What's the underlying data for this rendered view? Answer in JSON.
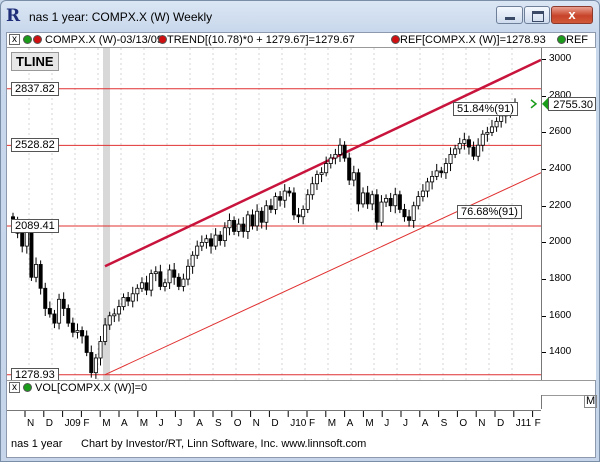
{
  "window": {
    "title": "nas 1 year: COMPX.X (W) Weekly",
    "app_icon": "R",
    "close_label": "x"
  },
  "legend": {
    "symbol_item": "COMPX.X (W)-03/13/09",
    "trend_item": "TREND[(10.78)*0 + 1279.67]=1279.67",
    "ref_item": "REF[COMPX.X (W)]=1278.93",
    "ref_item_short": "REF",
    "close_mark": "x",
    "dot_colors": [
      "#1a9b1a",
      "#d01010",
      "#d01010",
      "#d01010"
    ]
  },
  "plot": {
    "study_label": "TLINE",
    "ref_labels": [
      "2837.82",
      "2528.82",
      "2089.41",
      "1278.93"
    ],
    "channel_labels": [
      "51.84%(91)",
      "76.68%(91)"
    ],
    "last_price": "2755.30",
    "last_price_color": "#1a9b1a"
  },
  "volume": {
    "label": "VOL[COMPX.X (W)]=0",
    "close_mark": "x",
    "m_box": "M"
  },
  "x_axis": {
    "labels": [
      "N",
      "D",
      "J09",
      "F",
      "M",
      "A",
      "M",
      "J",
      "J",
      "A",
      "S",
      "O",
      "N",
      "D",
      "J10",
      "F",
      "M",
      "A",
      "M",
      "J",
      "J",
      "A",
      "S",
      "O",
      "N",
      "D",
      "J11",
      "F"
    ]
  },
  "footer": {
    "left": "nas 1 year",
    "right": "Chart by Investor/RT, Linn Software, Inc. www.linnsoft.com"
  },
  "chart_data": {
    "type": "candlestick",
    "symbol": "COMPX.X (W)",
    "interval": "Weekly",
    "y_ticks": [
      "3000",
      "2800",
      "2600",
      "2400",
      "2200",
      "2000",
      "1800",
      "1600",
      "1400"
    ],
    "ylim": [
      1250,
      3060
    ],
    "reference_lines": [
      2837.82,
      2528.82,
      2089.41,
      1278.93
    ],
    "trend_channel": {
      "upper": {
        "from": [
          "2009-03",
          1870
        ],
        "to": [
          "2011-02",
          2995
        ]
      },
      "lower": {
        "from": [
          "2009-03",
          1279
        ],
        "to": [
          "2011-02",
          2380
        ]
      },
      "labels": [
        "51.84%(91)",
        "76.68%(91)"
      ]
    },
    "weekly_close": [
      2110,
      2050,
      1980,
      2090,
      1810,
      1880,
      1750,
      1640,
      1610,
      1560,
      1690,
      1640,
      1560,
      1510,
      1520,
      1490,
      1400,
      1290,
      1370,
      1460,
      1550,
      1600,
      1610,
      1650,
      1700,
      1680,
      1720,
      1750,
      1780,
      1740,
      1830,
      1840,
      1760,
      1780,
      1850,
      1810,
      1760,
      1800,
      1870,
      1930,
      1980,
      2000,
      2020,
      1980,
      2040,
      2010,
      2080,
      2120,
      2060,
      2100,
      2060,
      2150,
      2090,
      2170,
      2110,
      2200,
      2180,
      2250,
      2230,
      2280,
      2270,
      2150,
      2140,
      2180,
      2260,
      2320,
      2370,
      2380,
      2430,
      2460,
      2480,
      2530,
      2460,
      2340,
      2380,
      2210,
      2270,
      2210,
      2260,
      2110,
      2220,
      2240,
      2200,
      2260,
      2180,
      2140,
      2120,
      2200,
      2250,
      2280,
      2330,
      2360,
      2390,
      2380,
      2430,
      2480,
      2510,
      2540,
      2560,
      2520,
      2470,
      2530,
      2590,
      2600,
      2630,
      2660,
      2690,
      2700,
      2720,
      2755.3
    ]
  }
}
